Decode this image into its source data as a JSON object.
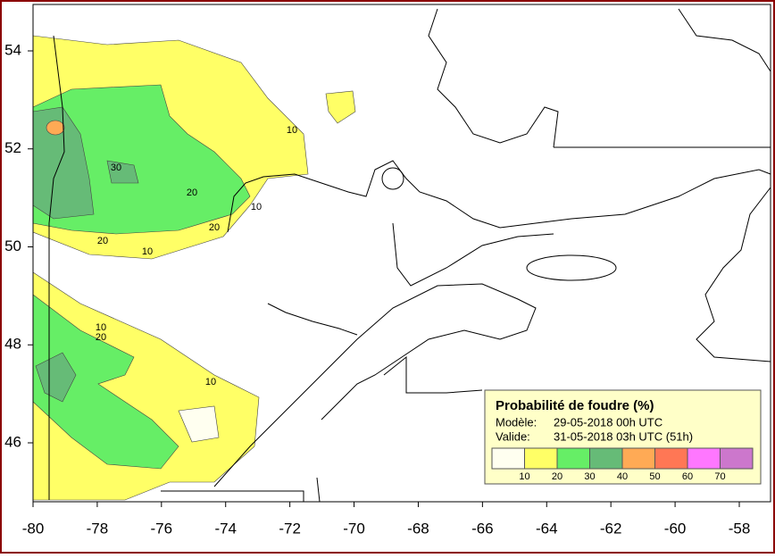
{
  "map": {
    "xticks": [
      -80,
      -78,
      -76,
      -74,
      -72,
      -70,
      -68,
      -66,
      -64,
      -62,
      -60,
      -58
    ],
    "yticks": [
      54,
      52,
      50,
      48,
      46
    ],
    "contour_labels": [
      "10",
      "30",
      "20",
      "20",
      "10",
      "20",
      "10",
      "10",
      "20",
      "10"
    ]
  },
  "legend": {
    "title": "Probabilité de foudre (%)",
    "model_label": "Modèle:",
    "model_value": "29-05-2018 00h UTC",
    "valid_label": "Valide:",
    "valid_value": "31-05-2018 03h UTC (51h)",
    "colors": [
      "#fffff0",
      "#ffff66",
      "#66ee66",
      "#66bb77",
      "#ffaa55",
      "#ff7755",
      "#ff77ff",
      "#cc77cc"
    ],
    "labels": [
      10,
      20,
      30,
      40,
      50,
      60,
      70
    ]
  }
}
